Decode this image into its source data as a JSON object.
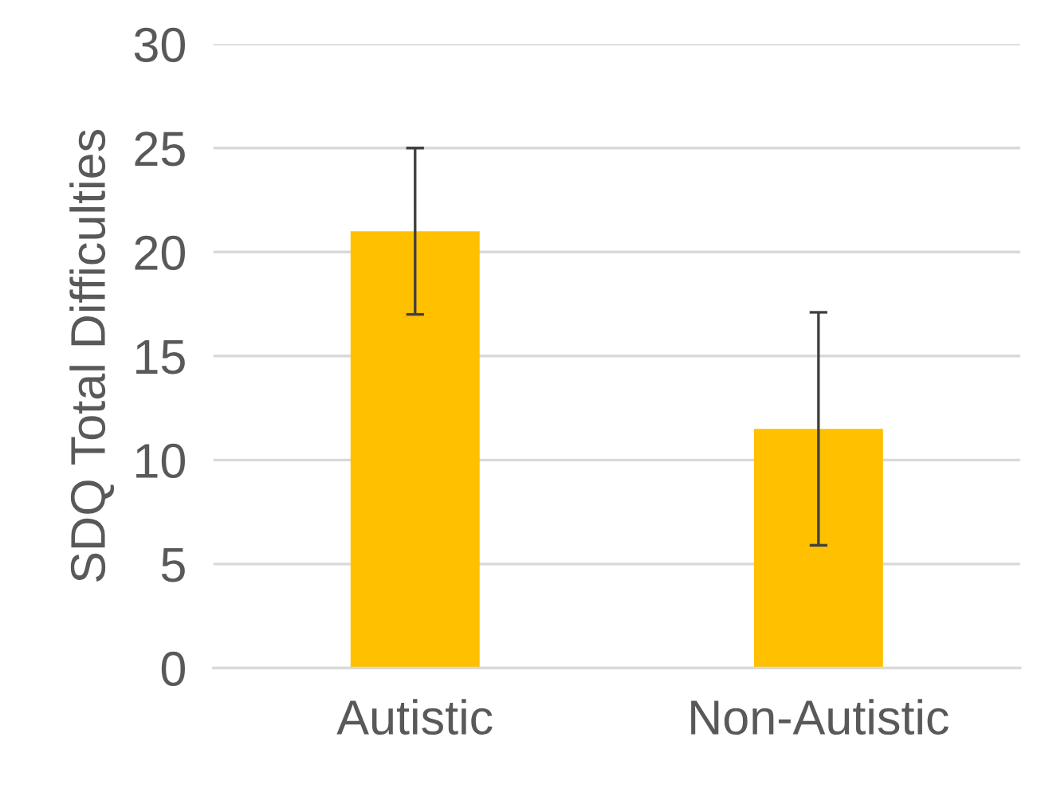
{
  "chart_data": {
    "type": "bar",
    "ylabel": "SDQ Total Difficulties",
    "categories": [
      "Autistic",
      "Non-Autistic"
    ],
    "values": [
      21,
      11.5
    ],
    "errors": [
      [
        17,
        25
      ],
      [
        5.9,
        17.1
      ]
    ],
    "color": "#ffc000",
    "ylim": [
      0,
      30
    ],
    "yticks": [
      0,
      5,
      10,
      15,
      20,
      25,
      30
    ],
    "grid": "y"
  }
}
